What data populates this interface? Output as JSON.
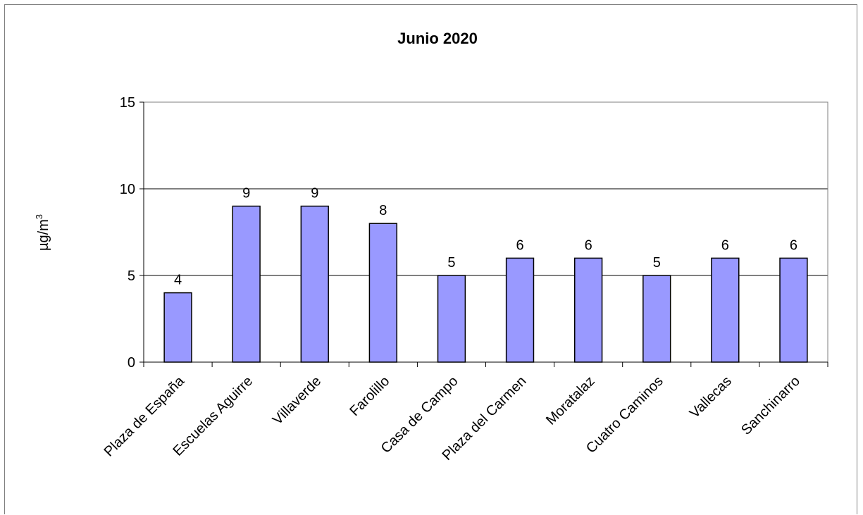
{
  "chart_data": {
    "type": "bar",
    "title": "Junio 2020",
    "xlabel": "",
    "ylabel": "µg/m",
    "ylabel_superscript": "3",
    "categories": [
      "Plaza de España",
      "Escuelas Aguirre",
      "Villaverde",
      "Farolillo",
      "Casa de Campo",
      "Plaza del Carmen",
      "Moratalaz",
      "Cuatro Caminos",
      "Vallecas",
      "Sanchinarro"
    ],
    "values": [
      4,
      9,
      9,
      8,
      5,
      6,
      6,
      5,
      6,
      6
    ],
    "ylim": [
      0,
      15
    ],
    "yticks": [
      0,
      5,
      10,
      15
    ],
    "grid": true,
    "bar_color": "#9999ff",
    "legend": "none"
  }
}
